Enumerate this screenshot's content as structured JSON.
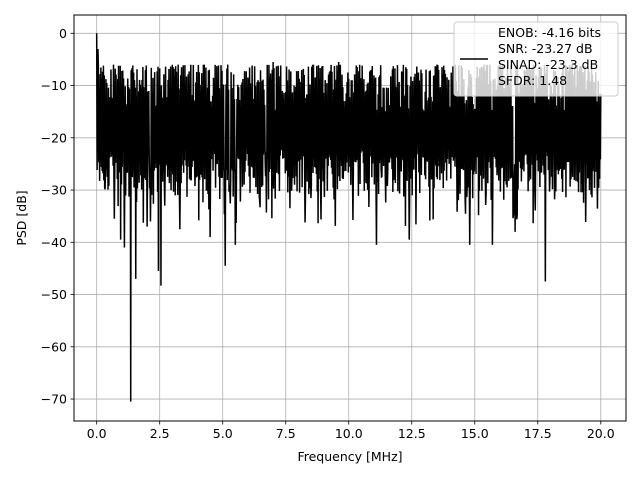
{
  "chart_data": {
    "type": "line",
    "title": "",
    "xlabel": "Frequency [MHz]",
    "ylabel": "PSD [dB]",
    "xlim": [
      -0.9,
      21.0
    ],
    "ylim": [
      -74.2,
      3.5
    ],
    "xticks": [
      0.0,
      2.5,
      5.0,
      7.5,
      10.0,
      12.5,
      15.0,
      17.5,
      20.0
    ],
    "xtick_labels": [
      "0.0",
      "2.5",
      "5.0",
      "7.5",
      "10.0",
      "12.5",
      "15.0",
      "17.5",
      "20.0"
    ],
    "yticks": [
      0,
      -10,
      -20,
      -30,
      -40,
      -50,
      -60,
      -70
    ],
    "ytick_labels": [
      "0",
      "−10",
      "−20",
      "−30",
      "−40",
      "−50",
      "−60",
      "−70"
    ],
    "grid": true,
    "legend": {
      "placement": "top-right",
      "lines": [
        "ENOB: -4.16 bits",
        "SNR: -23.27 dB",
        "SINAD: -23.3 dB",
        "SFDR: 1.48"
      ]
    },
    "series": [
      {
        "color": "#000000",
        "x_range": [
          0.0,
          20.0
        ],
        "typical_band_db": [
          -27,
          -8
        ],
        "peaks": [
          {
            "x": 0.0,
            "y": 0.0
          },
          {
            "x": 0.05,
            "y": -3.0
          },
          {
            "x": 1.1,
            "y": -7.0
          },
          {
            "x": 5.2,
            "y": -6.0
          },
          {
            "x": 7.0,
            "y": -5.5
          },
          {
            "x": 9.6,
            "y": -5.5
          },
          {
            "x": 13.5,
            "y": -6.0
          },
          {
            "x": 16.3,
            "y": -6.0
          },
          {
            "x": 18.8,
            "y": -6.5
          }
        ],
        "dips": [
          {
            "x": 0.7,
            "y": -35.5
          },
          {
            "x": 0.95,
            "y": -39.5
          },
          {
            "x": 1.1,
            "y": -41.0
          },
          {
            "x": 1.35,
            "y": -70.5
          },
          {
            "x": 1.55,
            "y": -47.0
          },
          {
            "x": 2.0,
            "y": -37.0
          },
          {
            "x": 2.45,
            "y": -45.5
          },
          {
            "x": 2.55,
            "y": -48.3
          },
          {
            "x": 3.3,
            "y": -37.5
          },
          {
            "x": 4.5,
            "y": -39.0
          },
          {
            "x": 5.1,
            "y": -44.5
          },
          {
            "x": 5.5,
            "y": -40.5
          },
          {
            "x": 11.1,
            "y": -40.5
          },
          {
            "x": 12.4,
            "y": -39.5
          },
          {
            "x": 14.8,
            "y": -40.5
          },
          {
            "x": 15.7,
            "y": -40.5
          },
          {
            "x": 16.6,
            "y": -38.0
          },
          {
            "x": 17.8,
            "y": -47.5
          }
        ]
      }
    ]
  }
}
